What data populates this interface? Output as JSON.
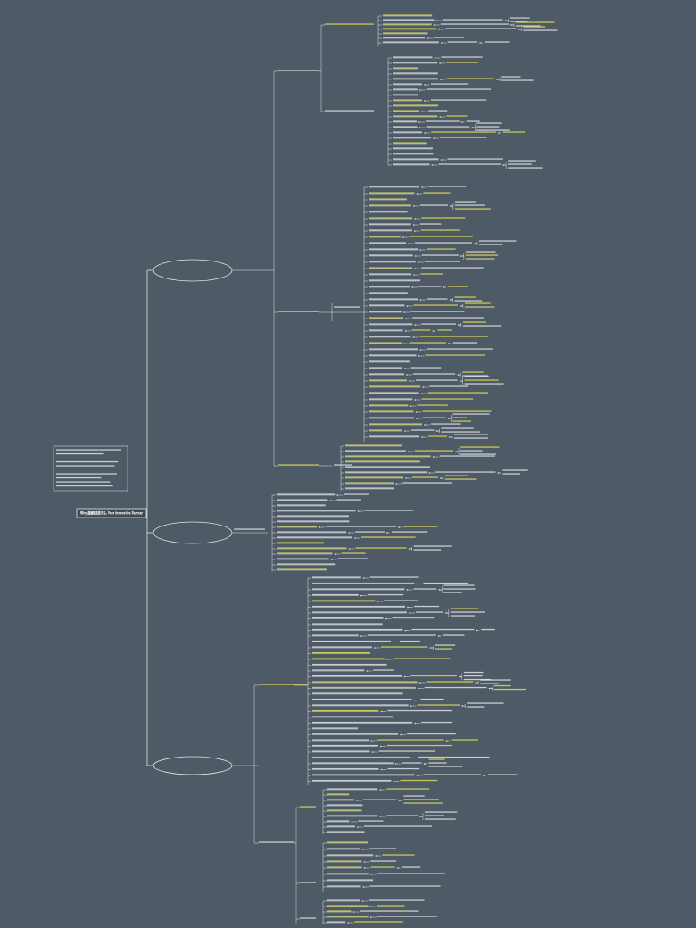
{
  "root": {
    "label": "Why 鼎捷要选择天马, Your Innovative Partner"
  }
}
